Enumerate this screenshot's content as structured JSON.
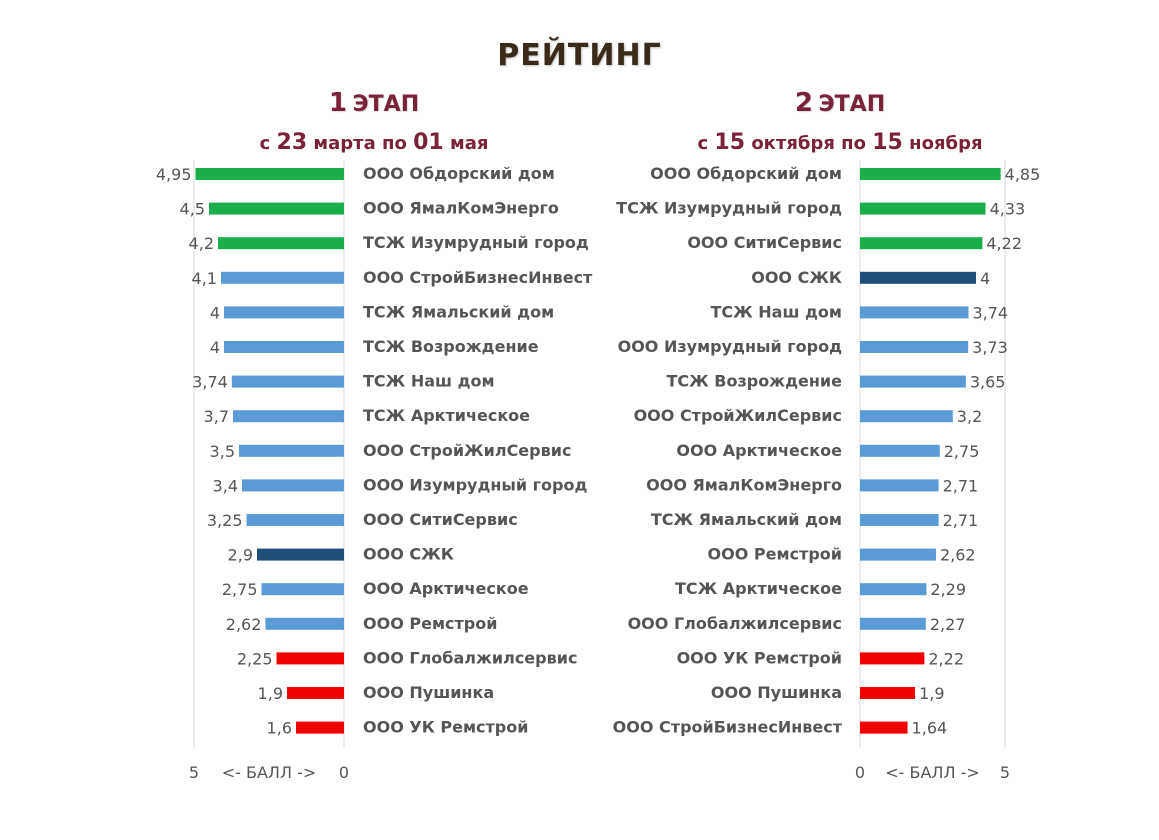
{
  "title": "РЕЙТИНГ",
  "stage1": {
    "title_num": "1",
    "title_word": "ЭТАП",
    "subtitle_pre": "с",
    "subtitle_d1": "23",
    "subtitle_m1": "марта по",
    "subtitle_d2": "01",
    "subtitle_m2": "мая"
  },
  "stage2": {
    "title_num": "2",
    "title_word": "ЭТАП",
    "subtitle_pre": "с",
    "subtitle_d1": "15",
    "subtitle_m1": "октября по",
    "subtitle_d2": "15",
    "subtitle_m2": "ноября"
  },
  "colors": {
    "green": "#1aaf4b",
    "blue": "#5b9bd5",
    "dark": "#1f4e79",
    "red": "#f00000",
    "grid": "#d9d9d9"
  },
  "chart_data": [
    {
      "type": "bar",
      "orientation": "horizontal",
      "direction": "right-to-left",
      "xlabel": "<- БАЛЛ ->",
      "xlim": [
        0,
        5
      ],
      "x_ticks": [
        "5",
        "0"
      ],
      "categories": [
        "ООО Обдорский дом",
        "ООО ЯмалКомЭнерго",
        "ТСЖ Изумрудный город",
        "ООО СтройБизнесИнвест",
        "ТСЖ Ямальский дом",
        "ТСЖ Возрождение",
        "ТСЖ Наш дом",
        "ТСЖ Арктическое",
        "ООО СтройЖилСервис",
        "ООО Изумрудный город",
        "ООО СитиСервис",
        "ООО СЖК",
        "ООО Арктическое",
        "ООО Ремстрой",
        "ООО Глобалжилсервис",
        "ООО Пушинка",
        "ООО УК Ремстрой"
      ],
      "values": [
        4.95,
        4.5,
        4.2,
        4.1,
        4,
        4,
        3.74,
        3.7,
        3.5,
        3.4,
        3.25,
        2.9,
        2.75,
        2.62,
        2.25,
        1.9,
        1.6
      ],
      "value_labels": [
        "4,95",
        "4,5",
        "4,2",
        "4,1",
        "4",
        "4",
        "3,74",
        "3,7",
        "3,5",
        "3,4",
        "3,25",
        "2,9",
        "2,75",
        "2,62",
        "2,25",
        "1,9",
        "1,6"
      ],
      "bar_colors": [
        "green",
        "green",
        "green",
        "blue",
        "blue",
        "blue",
        "blue",
        "blue",
        "blue",
        "blue",
        "blue",
        "dark",
        "blue",
        "blue",
        "red",
        "red",
        "red"
      ]
    },
    {
      "type": "bar",
      "orientation": "horizontal",
      "direction": "left-to-right",
      "xlabel": "<- БАЛЛ ->",
      "xlim": [
        0,
        5
      ],
      "x_ticks": [
        "0",
        "5"
      ],
      "categories": [
        "ООО Обдорский дом",
        "ТСЖ Изумрудный город",
        "ООО СитиСервис",
        "ООО СЖК",
        "ТСЖ Наш дом",
        "ООО Изумрудный город",
        "ТСЖ Возрождение",
        "ООО СтройЖилСервис",
        "ООО Арктическое",
        "ООО ЯмалКомЭнерго",
        "ТСЖ Ямальский дом",
        "ООО Ремстрой",
        "ТСЖ Арктическое",
        "ООО Глобалжилсервис",
        "ООО УК Ремстрой",
        "ООО Пушинка",
        "ООО СтройБизнесИнвест"
      ],
      "values": [
        4.85,
        4.33,
        4.22,
        4,
        3.74,
        3.73,
        3.65,
        3.2,
        2.75,
        2.71,
        2.71,
        2.62,
        2.29,
        2.27,
        2.22,
        1.9,
        1.64
      ],
      "value_labels": [
        "4,85",
        "4,33",
        "4,22",
        "4",
        "3,74",
        "3,73",
        "3,65",
        "3,2",
        "2,75",
        "2,71",
        "2,71",
        "2,62",
        "2,29",
        "2,27",
        "2,22",
        "1,9",
        "1,64"
      ],
      "bar_colors": [
        "green",
        "green",
        "green",
        "dark",
        "blue",
        "blue",
        "blue",
        "blue",
        "blue",
        "blue",
        "blue",
        "blue",
        "blue",
        "blue",
        "red",
        "red",
        "red"
      ]
    }
  ]
}
